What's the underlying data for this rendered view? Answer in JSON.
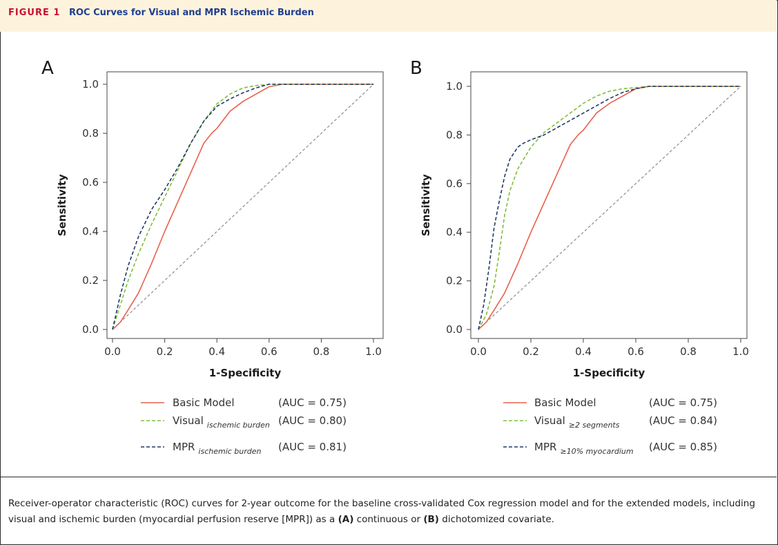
{
  "figure": {
    "label": "FIGURE 1",
    "title": "ROC Curves for Visual and MPR Ischemic Burden"
  },
  "caption": {
    "part1": "Receiver-operator characteristic (ROC) curves for 2-year outcome for the baseline cross-validated Cox regression model and for the extended models, including visual and ischemic burden (myocardial perfusion reserve [MPR]) as a ",
    "bold_a": "(A)",
    "part2": " continuous or ",
    "bold_b": "(B)",
    "part3": " dichotomized covariate."
  },
  "colors": {
    "basic": "#e8604c",
    "visual": "#7fbd3a",
    "mpr": "#1f3864",
    "reference": "#8c8c8c"
  },
  "chart_data": [
    {
      "type": "line",
      "panel": "A",
      "xlabel": "1-Specificity",
      "ylabel": "Sensitivity",
      "xlim": [
        0,
        1
      ],
      "ylim": [
        0,
        1
      ],
      "xticks": [
        "0.0",
        "0.2",
        "0.4",
        "0.6",
        "0.8",
        "1.0"
      ],
      "yticks": [
        "0.0",
        "0.2",
        "0.4",
        "0.6",
        "0.8",
        "1.0"
      ],
      "reference_line": [
        [
          0,
          0
        ],
        [
          1,
          1
        ]
      ],
      "series": [
        {
          "name": "Basic Model",
          "subscript": "",
          "auc": "(AUC = 0.75)",
          "style": "solid",
          "color_key": "basic",
          "x": [
            0,
            0.03,
            0.06,
            0.1,
            0.15,
            0.2,
            0.25,
            0.3,
            0.35,
            0.38,
            0.4,
            0.45,
            0.5,
            0.55,
            0.6,
            0.65,
            0.8,
            1.0
          ],
          "y": [
            0,
            0.03,
            0.08,
            0.15,
            0.27,
            0.4,
            0.52,
            0.64,
            0.76,
            0.8,
            0.82,
            0.89,
            0.93,
            0.96,
            0.99,
            1.0,
            1.0,
            1.0
          ]
        },
        {
          "name": "Visual",
          "subscript": "ischemic burden",
          "auc": "(AUC = 0.80)",
          "style": "dashed",
          "color_key": "visual",
          "x": [
            0,
            0.03,
            0.06,
            0.1,
            0.15,
            0.2,
            0.25,
            0.3,
            0.35,
            0.4,
            0.45,
            0.5,
            0.55,
            0.6,
            0.65,
            0.8,
            1.0
          ],
          "y": [
            0,
            0.1,
            0.2,
            0.31,
            0.43,
            0.54,
            0.65,
            0.76,
            0.85,
            0.92,
            0.96,
            0.985,
            0.995,
            1.0,
            1.0,
            1.0,
            1.0
          ]
        },
        {
          "name": "MPR",
          "subscript": "ischemic burden",
          "auc": "(AUC = 0.81)",
          "style": "dashed",
          "color_key": "mpr",
          "x": [
            0,
            0.03,
            0.06,
            0.1,
            0.15,
            0.2,
            0.25,
            0.3,
            0.35,
            0.4,
            0.45,
            0.5,
            0.55,
            0.6,
            0.65,
            0.8,
            1.0
          ],
          "y": [
            0,
            0.14,
            0.26,
            0.38,
            0.49,
            0.57,
            0.66,
            0.76,
            0.85,
            0.91,
            0.94,
            0.965,
            0.985,
            1.0,
            1.0,
            1.0,
            1.0
          ]
        }
      ]
    },
    {
      "type": "line",
      "panel": "B",
      "xlabel": "1-Specificity",
      "ylabel": "Sensitivity",
      "xlim": [
        0,
        1
      ],
      "ylim": [
        0,
        1
      ],
      "xticks": [
        "0.0",
        "0.2",
        "0.4",
        "0.6",
        "0.8",
        "1.0"
      ],
      "yticks": [
        "0.0",
        "0.2",
        "0.4",
        "0.6",
        "0.8",
        "1.0"
      ],
      "reference_line": [
        [
          0,
          0
        ],
        [
          1,
          1
        ]
      ],
      "series": [
        {
          "name": "Basic Model",
          "subscript": "",
          "auc": "(AUC = 0.75)",
          "style": "solid",
          "color_key": "basic",
          "x": [
            0,
            0.03,
            0.06,
            0.1,
            0.15,
            0.2,
            0.25,
            0.3,
            0.35,
            0.38,
            0.4,
            0.45,
            0.5,
            0.55,
            0.6,
            0.65,
            0.8,
            1.0
          ],
          "y": [
            0,
            0.03,
            0.08,
            0.15,
            0.27,
            0.4,
            0.52,
            0.64,
            0.76,
            0.8,
            0.82,
            0.89,
            0.93,
            0.96,
            0.99,
            1.0,
            1.0,
            1.0
          ]
        },
        {
          "name": "Visual",
          "subscript": "≥2 segments",
          "auc": "(AUC = 0.84)",
          "style": "dashed",
          "color_key": "visual",
          "x": [
            0,
            0.03,
            0.06,
            0.08,
            0.1,
            0.12,
            0.15,
            0.2,
            0.25,
            0.3,
            0.35,
            0.4,
            0.45,
            0.5,
            0.55,
            0.6,
            0.65,
            0.8,
            1.0
          ],
          "y": [
            0,
            0.06,
            0.18,
            0.32,
            0.47,
            0.57,
            0.66,
            0.75,
            0.81,
            0.85,
            0.89,
            0.93,
            0.96,
            0.98,
            0.99,
            0.995,
            1.0,
            1.0,
            1.0
          ]
        },
        {
          "name": "MPR",
          "subscript": "≥10% myocardium",
          "auc": "(AUC = 0.85)",
          "style": "dashed",
          "color_key": "mpr",
          "x": [
            0,
            0.02,
            0.04,
            0.06,
            0.08,
            0.1,
            0.12,
            0.15,
            0.17,
            0.2,
            0.25,
            0.3,
            0.35,
            0.4,
            0.45,
            0.5,
            0.55,
            0.6,
            0.65,
            0.8,
            1.0
          ],
          "y": [
            0,
            0.1,
            0.25,
            0.42,
            0.53,
            0.63,
            0.7,
            0.75,
            0.765,
            0.78,
            0.8,
            0.83,
            0.86,
            0.89,
            0.92,
            0.95,
            0.975,
            0.99,
            1.0,
            1.0,
            1.0
          ]
        }
      ]
    }
  ]
}
